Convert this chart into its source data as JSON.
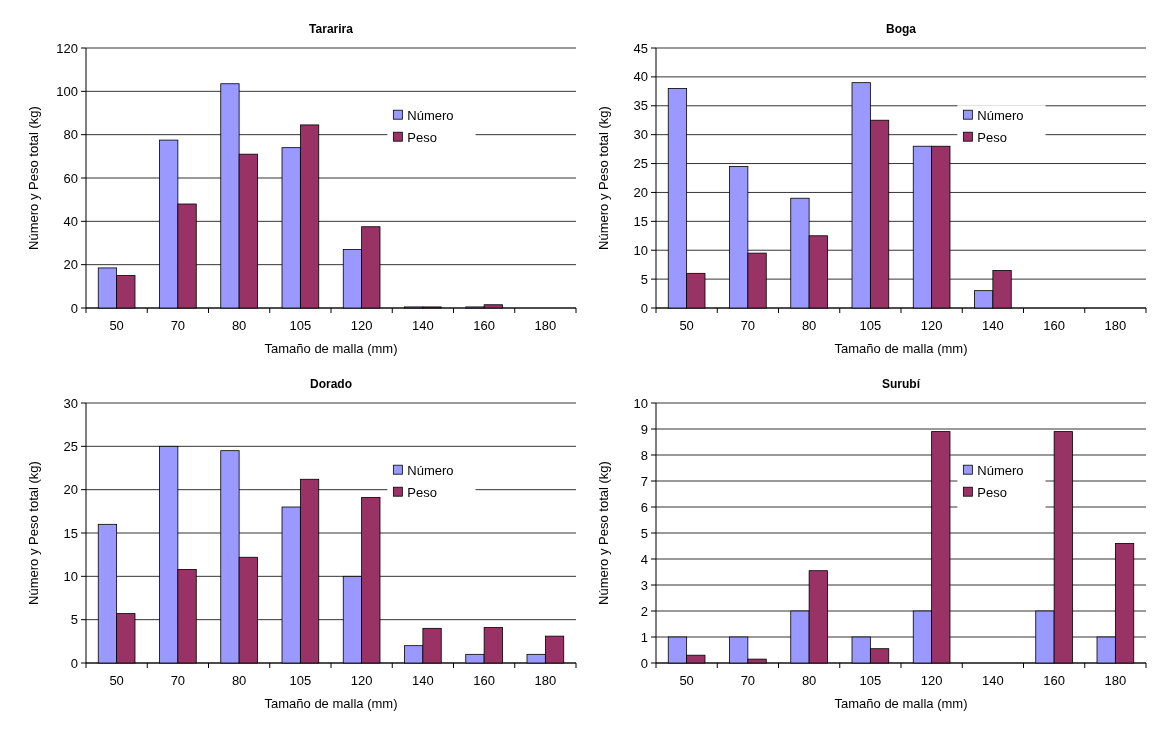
{
  "chart_data": [
    {
      "type": "bar",
      "title": "Tararira",
      "xlabel": "Tamaño de malla (mm)",
      "ylabel": "Número y Peso total (kg)",
      "categories": [
        "50",
        "70",
        "80",
        "105",
        "120",
        "140",
        "160",
        "180"
      ],
      "series": [
        {
          "name": "Número",
          "color": "#9999ff",
          "values": [
            18.5,
            77.5,
            103.5,
            74,
            27,
            0.5,
            0.5,
            0
          ]
        },
        {
          "name": "Peso",
          "color": "#993366",
          "values": [
            15,
            48,
            71,
            84.5,
            37.5,
            0.5,
            1.5,
            0
          ]
        }
      ],
      "ylim": [
        0,
        120
      ],
      "yticks": [
        0,
        20,
        40,
        60,
        80,
        100,
        120
      ],
      "grid": "y",
      "legend": "top right"
    },
    {
      "type": "bar",
      "title": "Boga",
      "xlabel": "Tamaño de malla (mm)",
      "ylabel": "Número y Peso total (kg)",
      "categories": [
        "50",
        "70",
        "80",
        "105",
        "120",
        "140",
        "160",
        "180"
      ],
      "series": [
        {
          "name": "Número",
          "color": "#9999ff",
          "values": [
            38,
            24.5,
            19,
            39,
            28,
            3,
            0,
            0
          ]
        },
        {
          "name": "Peso",
          "color": "#993366",
          "values": [
            6,
            9.5,
            12.5,
            32.5,
            28,
            6.5,
            0,
            0
          ]
        }
      ],
      "ylim": [
        0,
        45
      ],
      "yticks": [
        0,
        5,
        10,
        15,
        20,
        25,
        30,
        35,
        40,
        45
      ],
      "grid": "y",
      "legend": "top right"
    },
    {
      "type": "bar",
      "title": "Dorado",
      "xlabel": "Tamaño de malla (mm)",
      "ylabel": "Número y Peso total (kg)",
      "categories": [
        "50",
        "70",
        "80",
        "105",
        "120",
        "140",
        "160",
        "180"
      ],
      "series": [
        {
          "name": "Número",
          "color": "#9999ff",
          "values": [
            16,
            25,
            24.5,
            18,
            10,
            2,
            1,
            1
          ]
        },
        {
          "name": "Peso",
          "color": "#993366",
          "values": [
            5.7,
            10.8,
            12.2,
            21.2,
            19.1,
            4,
            4.1,
            3.1
          ]
        }
      ],
      "ylim": [
        0,
        30
      ],
      "yticks": [
        0,
        5,
        10,
        15,
        20,
        25,
        30
      ],
      "grid": "y",
      "legend": "top right"
    },
    {
      "type": "bar",
      "title": "Surubí",
      "xlabel": "Tamaño de malla (mm)",
      "ylabel": "Número y Peso total (kg)",
      "categories": [
        "50",
        "70",
        "80",
        "105",
        "120",
        "140",
        "160",
        "180"
      ],
      "series": [
        {
          "name": "Número",
          "color": "#9999ff",
          "values": [
            1,
            1,
            2,
            1,
            2,
            0,
            2,
            1
          ]
        },
        {
          "name": "Peso",
          "color": "#993366",
          "values": [
            0.3,
            0.15,
            3.55,
            0.55,
            8.9,
            0,
            8.9,
            4.6
          ]
        }
      ],
      "ylim": [
        0,
        10
      ],
      "yticks": [
        0,
        1,
        2,
        3,
        4,
        5,
        6,
        7,
        8,
        9,
        10
      ],
      "grid": "y",
      "legend": "top right"
    }
  ]
}
